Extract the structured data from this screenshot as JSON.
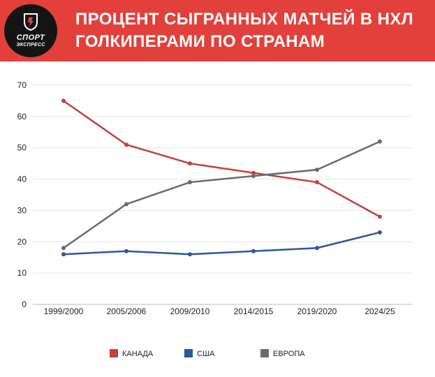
{
  "header": {
    "title_line1": "ПРОЦЕНТ СЫГРАННЫХ МАТЧЕЙ В НХЛ",
    "title_line2": "ГОЛКИПЕРАМИ ПО СТРАНАМ",
    "logo_line1": "СПОРТ",
    "logo_line2": "ЭКСПРЕСС",
    "brand_color": "#e3403b"
  },
  "chart_data": {
    "type": "line",
    "title": "ПРОЦЕНТ СЫГРАННЫХ МАТЧЕЙ В НХЛ ГОЛКИПЕРАМИ ПО СТРАНАМ",
    "categories": [
      "1999/2000",
      "2005/2006",
      "2009/2010",
      "2014/2015",
      "2019/2020",
      "2024/25"
    ],
    "ylim": [
      0,
      70
    ],
    "yticks": [
      0,
      10,
      20,
      30,
      40,
      50,
      60,
      70
    ],
    "grid": true,
    "legend_position": "bottom",
    "series": [
      {
        "name": "КАНАДА",
        "color": "#c0433f",
        "values": [
          65,
          51,
          45,
          42,
          39,
          28
        ]
      },
      {
        "name": "США",
        "color": "#2a57a0",
        "values": [
          16,
          17,
          16,
          17,
          18,
          23
        ]
      },
      {
        "name": "ЕВРОПА",
        "color": "#6b6b6b",
        "values": [
          18,
          32,
          39,
          41,
          43,
          52
        ]
      }
    ]
  }
}
